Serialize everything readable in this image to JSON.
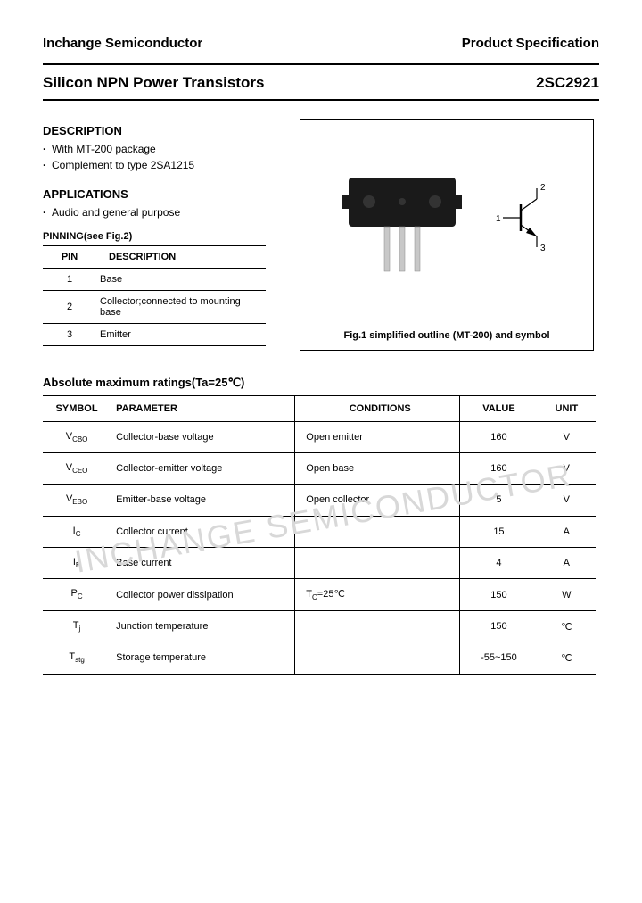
{
  "header": {
    "left": "Inchange Semiconductor",
    "right": "Product Specification"
  },
  "title": {
    "left": "Silicon NPN Power Transistors",
    "right": "2SC2921"
  },
  "description": {
    "heading": "DESCRIPTION",
    "items": [
      "With MT-200 package",
      "Complement to type 2SA1215"
    ]
  },
  "applications": {
    "heading": "APPLICATIONS",
    "items": [
      "Audio and general purpose"
    ]
  },
  "pinning": {
    "heading": "PINNING(see Fig.2)",
    "columns": [
      "PIN",
      "DESCRIPTION"
    ],
    "rows": [
      [
        "1",
        "Base"
      ],
      [
        "2",
        "Collector;connected to mounting base"
      ],
      [
        "3",
        "Emitter"
      ]
    ]
  },
  "figure": {
    "caption": "Fig.1 simplified outline (MT-200) and symbol",
    "symbol_labels": {
      "base": "1",
      "collector": "2",
      "emitter": "3"
    },
    "pkg_color": "#1a1a1a",
    "lead_color": "#c8c8c8"
  },
  "ratings": {
    "heading": "Absolute maximum ratings(Ta=25℃)",
    "columns": [
      "SYMBOL",
      "PARAMETER",
      "CONDITIONS",
      "VALUE",
      "UNIT"
    ],
    "rows": [
      {
        "symbol": "V<sub>CBO</sub>",
        "parameter": "Collector-base voltage",
        "conditions": "Open emitter",
        "value": "160",
        "unit": "V"
      },
      {
        "symbol": "V<sub>CEO</sub>",
        "parameter": "Collector-emitter voltage",
        "conditions": "Open base",
        "value": "160",
        "unit": "V"
      },
      {
        "symbol": "V<sub>EBO</sub>",
        "parameter": "Emitter-base voltage",
        "conditions": "Open collector",
        "value": "5",
        "unit": "V"
      },
      {
        "symbol": "I<sub>C</sub>",
        "parameter": "Collector current",
        "conditions": "",
        "value": "15",
        "unit": "A"
      },
      {
        "symbol": "I<sub>B</sub>",
        "parameter": "Base current",
        "conditions": "",
        "value": "4",
        "unit": "A"
      },
      {
        "symbol": "P<sub>C</sub>",
        "parameter": "Collector power dissipation",
        "conditions": "T<sub>C</sub>=25℃",
        "value": "150",
        "unit": "W"
      },
      {
        "symbol": "T<sub>j</sub>",
        "parameter": "Junction temperature",
        "conditions": "",
        "value": "150",
        "unit": "℃"
      },
      {
        "symbol": "T<sub>stg</sub>",
        "parameter": "Storage temperature",
        "conditions": "",
        "value": "-55~150",
        "unit": "℃"
      }
    ]
  },
  "watermark": "INCHANGE SEMICONDUCTOR"
}
